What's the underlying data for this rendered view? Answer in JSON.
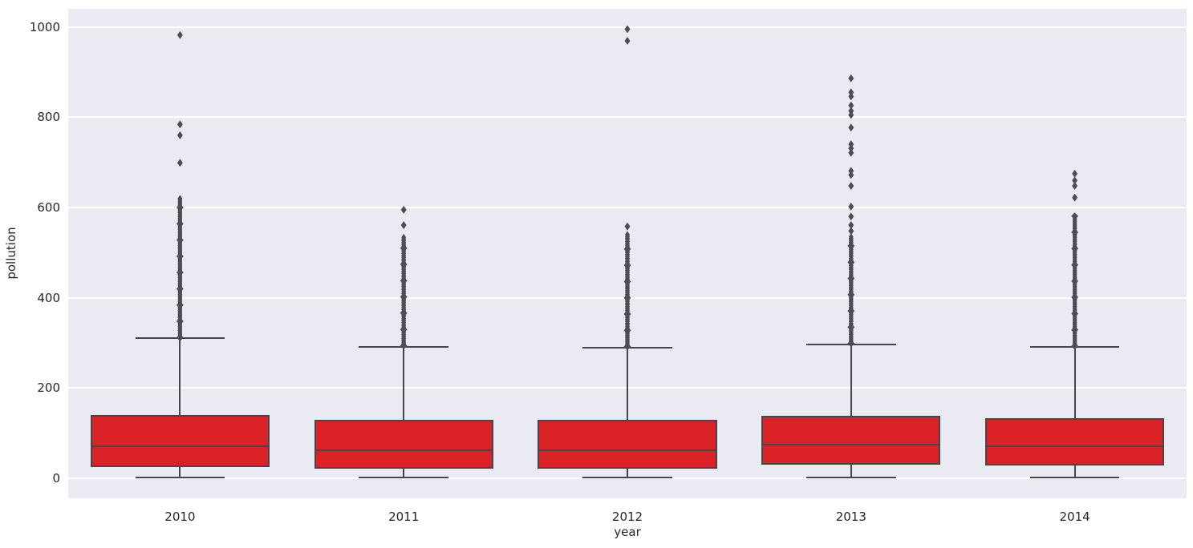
{
  "chart_data": {
    "type": "boxplot",
    "title": "",
    "xlabel": "year",
    "ylabel": "pollution",
    "categories": [
      "2010",
      "2011",
      "2012",
      "2013",
      "2014"
    ],
    "yticks": [
      0,
      200,
      400,
      600,
      800,
      1000
    ],
    "ylim": [
      -44,
      1040
    ],
    "grid": true,
    "legend": false,
    "series": [
      {
        "category": "2010",
        "whisker_low": 2,
        "q1": 26,
        "median": 72,
        "q3": 141,
        "whisker_high": 310,
        "outliers_dense_range": [
          312,
          622
        ],
        "outliers": [
          699,
          760,
          784,
          982
        ]
      },
      {
        "category": "2011",
        "whisker_low": 2,
        "q1": 21,
        "median": 63,
        "q3": 129,
        "whisker_high": 292,
        "outliers_dense_range": [
          294,
          535
        ],
        "outliers": [
          561,
          595
        ]
      },
      {
        "category": "2012",
        "whisker_low": 2,
        "q1": 21,
        "median": 63,
        "q3": 129,
        "whisker_high": 290,
        "outliers_dense_range": [
          292,
          542
        ],
        "outliers": [
          558,
          969,
          995
        ]
      },
      {
        "category": "2013",
        "whisker_low": 2,
        "q1": 31,
        "median": 74,
        "q3": 139,
        "whisker_high": 297,
        "outliers_dense_range": [
          299,
          537
        ],
        "outliers": [
          548,
          561,
          580,
          602,
          648,
          672,
          681,
          721,
          731,
          740,
          777,
          805,
          814,
          826,
          846,
          855,
          886
        ]
      },
      {
        "category": "2014",
        "whisker_low": 2,
        "q1": 28,
        "median": 71,
        "q3": 133,
        "whisker_high": 291,
        "outliers_dense_range": [
          293,
          583
        ],
        "outliers": [
          622,
          648,
          660,
          675
        ]
      }
    ],
    "colors": {
      "box_fill": "#da2125",
      "line": "#43474b",
      "flier": "#4b4e52",
      "plot_background": "#eaeaf2",
      "gridline": "#ffffff",
      "tick_text": "#262626"
    }
  }
}
